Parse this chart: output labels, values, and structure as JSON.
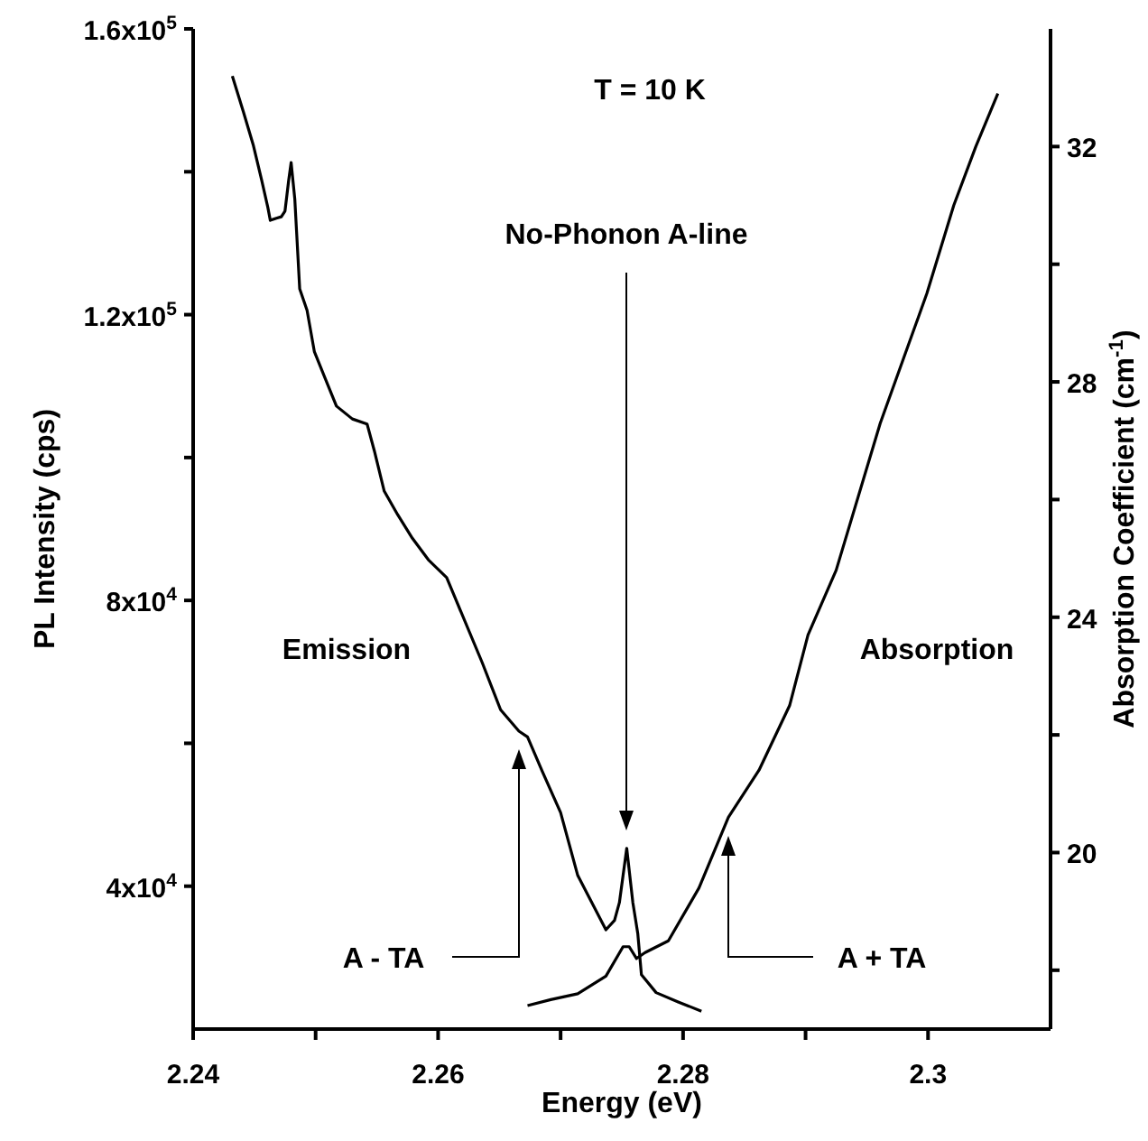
{
  "chart_data": {
    "type": "line",
    "xlabel": "Energy (eV)",
    "ylabel": "PL Intensity (cps)",
    "y2label": "Absorption Coefficient (cm$^{-1}$)",
    "xlim": [
      2.24,
      2.31
    ],
    "xticks": [
      2.24,
      {
        "value": 2.25,
        "label": null
      },
      2.26,
      {
        "value": 2.27,
        "label": null
      },
      2.28,
      {
        "value": 2.29,
        "label": null
      },
      2.3
    ],
    "ylim": [
      20000,
      160000
    ],
    "yticks": [
      {
        "value": 40000,
        "label": "4x10$^{4}$"
      },
      {
        "value": 60000,
        "label": null
      },
      {
        "value": 80000,
        "label": "8x10$^{4}$"
      },
      {
        "value": 100000,
        "label": null
      },
      {
        "value": 120000,
        "label": "1.2x10$^{5}$"
      },
      {
        "value": 140000,
        "label": null
      },
      {
        "value": 160000,
        "label": "1.6x10$^{5}$"
      }
    ],
    "y2lim": [
      17,
      34
    ],
    "y2ticks": [
      {
        "value": 18,
        "label": null
      },
      20,
      {
        "value": 22,
        "label": null
      },
      24,
      {
        "value": 26,
        "label": null
      },
      28,
      {
        "value": 30,
        "label": null
      },
      32
    ],
    "marker": "none",
    "line_style": "solid",
    "series": [
      {
        "name": "Emission",
        "color": "#000000",
        "x": [
          2.2432,
          2.2441,
          2.2449,
          2.2456,
          2.2461,
          2.2463,
          2.2468,
          2.2472,
          2.2475,
          2.2478,
          2.248,
          2.2483,
          2.2487,
          2.2493,
          2.2499,
          2.2508,
          2.2517,
          2.253,
          2.2542,
          2.2548,
          2.2556,
          2.2567,
          2.2579,
          2.2592,
          2.2607,
          2.2615,
          2.2636,
          2.2651,
          2.2666,
          2.2673,
          2.2685,
          2.27,
          2.2714,
          2.2737,
          2.2744,
          2.2748,
          2.2754,
          2.2759,
          2.2763,
          2.2766,
          2.2778,
          2.2796,
          2.2815
        ],
        "values": [
          153400,
          148400,
          143800,
          138800,
          135000,
          133200,
          133500,
          133700,
          134500,
          138800,
          141300,
          136200,
          123600,
          120600,
          114800,
          111000,
          107200,
          105400,
          104700,
          100900,
          95300,
          92000,
          88700,
          85700,
          83200,
          79900,
          71300,
          64700,
          61700,
          60900,
          56100,
          50300,
          41500,
          33900,
          35200,
          37700,
          45300,
          37700,
          33400,
          27600,
          25100,
          23800,
          22500
        ]
      },
      {
        "name": "Absorption",
        "color": "#000000",
        "axis": "y2",
        "x": [
          2.2673,
          2.2692,
          2.2714,
          2.2737,
          2.2751,
          2.2756,
          2.2762,
          2.2769,
          2.2788,
          2.2813,
          2.2837,
          2.2862,
          2.2887,
          2.2902,
          2.2925,
          2.2961,
          2.298,
          2.2999,
          2.3021,
          2.3039,
          2.3057
        ],
        "values": [
          17.4,
          17.5,
          17.6,
          17.9,
          18.4,
          18.4,
          18.2,
          18.3,
          18.5,
          19.4,
          20.6,
          21.4,
          22.5,
          23.7,
          24.8,
          27.3,
          28.4,
          29.5,
          31.0,
          32.0,
          32.9
        ]
      }
    ],
    "annotations": [
      "T = 10 K",
      "No-Phonon A-line",
      "A - TA",
      "A + TA"
    ]
  }
}
